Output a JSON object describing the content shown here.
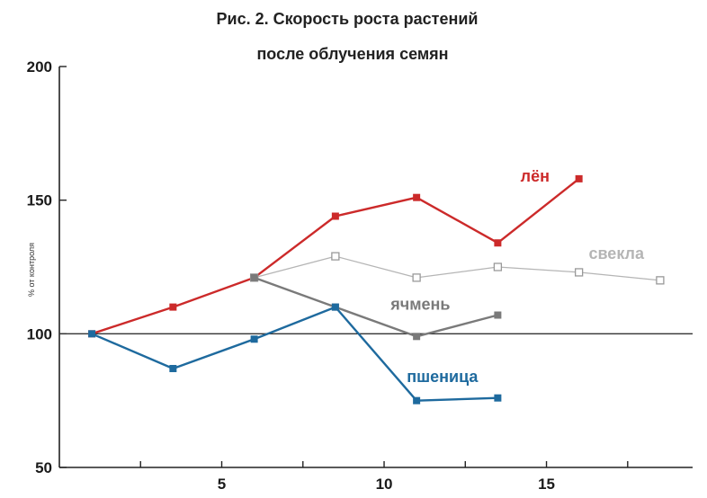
{
  "chart_data": {
    "type": "line",
    "title_line1": "Рис. 2. Скорость роста растений",
    "title_line2": "после облучения семян",
    "xlabel": "",
    "ylabel": "% от контроля",
    "xlim": [
      0,
      19.5
    ],
    "ylim": [
      50,
      200
    ],
    "x_ticks": [
      2.5,
      5,
      7.5,
      10,
      12.5,
      15,
      17.5
    ],
    "x_tick_labels": [
      {
        "x": 5,
        "text": "5"
      },
      {
        "x": 10,
        "text": "10"
      },
      {
        "x": 15,
        "text": "15"
      }
    ],
    "y_tick_labels": [
      {
        "y": 200,
        "text": "200"
      },
      {
        "y": 150,
        "text": "150"
      },
      {
        "y": 100,
        "text": "100"
      },
      {
        "y": 50,
        "text": "50"
      }
    ],
    "reference_line_y": 100,
    "series": [
      {
        "name": "лён",
        "color": "#cc2a2a",
        "marker": "filled-square",
        "x": [
          1.0,
          3.5,
          6.0,
          8.5,
          11.0,
          13.5,
          16.0
        ],
        "y": [
          100,
          110,
          121,
          144,
          151,
          134,
          158
        ]
      },
      {
        "name": "свекла",
        "color": "#b5b5b5",
        "marker": "open-square",
        "x": [
          6.0,
          8.5,
          11.0,
          13.5,
          16.0,
          18.5
        ],
        "y": [
          121,
          129,
          121,
          125,
          123,
          120
        ]
      },
      {
        "name": "ячмень",
        "color": "#7a7a7a",
        "marker": "filled-square",
        "x": [
          6.0,
          8.5,
          11.0,
          13.5
        ],
        "y": [
          121,
          110,
          99,
          107
        ]
      },
      {
        "name": "пшеница",
        "color": "#1e6a9e",
        "marker": "filled-square",
        "x": [
          1.0,
          3.5,
          6.0,
          8.5,
          11.0,
          13.5
        ],
        "y": [
          100,
          87,
          98,
          110,
          75,
          76
        ]
      }
    ],
    "series_labels": [
      {
        "series": 0,
        "text": "лён",
        "x": 14.2,
        "y": 157
      },
      {
        "series": 1,
        "text": "свекла",
        "x": 16.3,
        "y": 128
      },
      {
        "series": 2,
        "text": "ячмень",
        "x": 10.2,
        "y": 109
      },
      {
        "series": 3,
        "text": "пшеница",
        "x": 10.7,
        "y": 82
      }
    ]
  }
}
